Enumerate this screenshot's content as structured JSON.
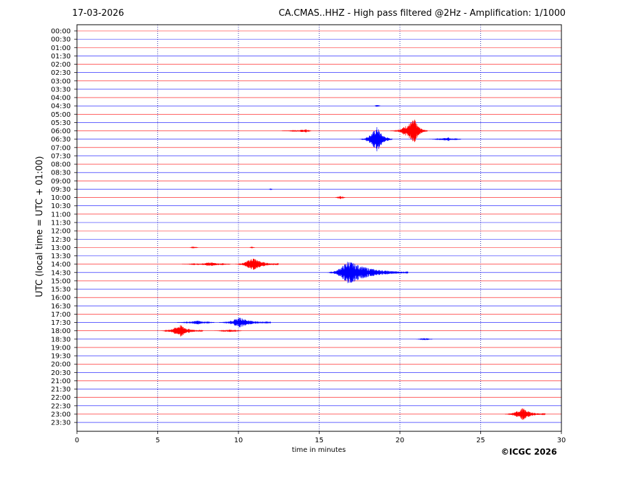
{
  "header": {
    "date": "17-03-2026",
    "title": "CA.CMAS..HHZ - High pass filtered @2Hz - Amplification: 1/1000"
  },
  "footer": {
    "copyright": "©ICGC 2026"
  },
  "chart_data": {
    "type": "line",
    "title": "CA.CMAS..HHZ - High pass filtered @2Hz - Amplification: 1/1000",
    "xlabel": "time in minutes",
    "ylabel": "UTC (local time = UTC + 01:00)",
    "xlim": [
      0,
      30
    ],
    "xticks": [
      "0",
      "5",
      "10",
      "15",
      "20",
      "25",
      "30"
    ],
    "grid": "vertical dotted at every 5 minutes",
    "trace_colors": [
      "#ff0000",
      "#0000ff"
    ],
    "rows": [
      "00:00",
      "00:30",
      "01:00",
      "01:30",
      "02:00",
      "02:30",
      "03:00",
      "03:30",
      "04:00",
      "04:30",
      "05:00",
      "05:30",
      "06:00",
      "06:30",
      "07:00",
      "07:30",
      "08:00",
      "08:30",
      "09:00",
      "09:30",
      "10:00",
      "10:30",
      "11:00",
      "11:30",
      "12:00",
      "12:30",
      "13:00",
      "13:30",
      "14:00",
      "14:30",
      "15:00",
      "15:30",
      "16:00",
      "16:30",
      "17:00",
      "17:30",
      "18:00",
      "18:30",
      "19:00",
      "19:30",
      "20:00",
      "20:30",
      "21:00",
      "21:30",
      "22:00",
      "22:30",
      "23:00",
      "23:30"
    ],
    "events": [
      {
        "row": "04:30",
        "start": 18.4,
        "end": 18.8,
        "peak": 18.6,
        "amp": 0.15
      },
      {
        "row": "06:00",
        "start": 12.7,
        "end": 14.5,
        "peak": 14.2,
        "amp": 0.2
      },
      {
        "row": "06:00",
        "start": 19.4,
        "end": 21.7,
        "peak": 20.9,
        "amp": 1.5
      },
      {
        "row": "06:30",
        "start": 17.5,
        "end": 19.5,
        "peak": 18.6,
        "amp": 1.6
      },
      {
        "row": "06:30",
        "start": 21.8,
        "end": 23.8,
        "peak": 23.0,
        "amp": 0.25
      },
      {
        "row": "09:30",
        "start": 11.9,
        "end": 12.1,
        "peak": 12.0,
        "amp": 0.1
      },
      {
        "row": "10:00",
        "start": 16.0,
        "end": 16.6,
        "peak": 16.3,
        "amp": 0.2
      },
      {
        "row": "13:00",
        "start": 7.0,
        "end": 7.5,
        "peak": 7.2,
        "amp": 0.12
      },
      {
        "row": "13:00",
        "start": 10.7,
        "end": 11.0,
        "peak": 10.8,
        "amp": 0.1
      },
      {
        "row": "14:00",
        "start": 6.5,
        "end": 9.5,
        "peak": 8.3,
        "amp": 0.25
      },
      {
        "row": "14:00",
        "start": 9.8,
        "end": 12.5,
        "peak": 10.9,
        "amp": 0.85
      },
      {
        "row": "14:30",
        "start": 15.5,
        "end": 20.5,
        "peak": 16.8,
        "amp": 1.5
      },
      {
        "row": "17:30",
        "start": 6.2,
        "end": 8.5,
        "peak": 7.5,
        "amp": 0.25
      },
      {
        "row": "17:30",
        "start": 8.8,
        "end": 12.0,
        "peak": 10.1,
        "amp": 0.65
      },
      {
        "row": "18:00",
        "start": 5.2,
        "end": 7.8,
        "peak": 6.4,
        "amp": 0.75
      },
      {
        "row": "18:00",
        "start": 8.5,
        "end": 10.2,
        "peak": 9.5,
        "amp": 0.15
      },
      {
        "row": "18:30",
        "start": 21.0,
        "end": 22.0,
        "peak": 21.5,
        "amp": 0.12
      },
      {
        "row": "23:00",
        "start": 26.5,
        "end": 29.0,
        "peak": 27.6,
        "amp": 0.75
      }
    ]
  }
}
